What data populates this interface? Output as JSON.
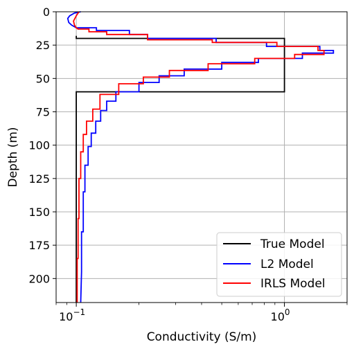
{
  "chart_data": {
    "type": "line",
    "xlabel": "Conductivity (S/m)",
    "ylabel": "Depth (m)",
    "x_scale": "log",
    "xlim": [
      0.08,
      2.0
    ],
    "ylim": [
      218,
      0
    ],
    "y_inverted": true,
    "grid": true,
    "legend": "bottom-right",
    "x_ticks": [
      {
        "value": 0.1,
        "base": "10",
        "exp": "−1"
      },
      {
        "value": 1.0,
        "base": "10",
        "exp": "0"
      }
    ],
    "y_ticks": [
      0,
      25,
      50,
      75,
      100,
      125,
      150,
      175,
      200
    ],
    "series": [
      {
        "name": "True Model",
        "color": "#000000",
        "x": [
          0.1,
          0.1,
          1.0,
          1.0,
          0.1,
          0.1
        ],
        "y": [
          18,
          20,
          20,
          60,
          60,
          218
        ]
      },
      {
        "name": "L2 Model",
        "color": "#0000ff",
        "x": [
          0.105,
          0.098,
          0.093,
          0.091,
          0.092,
          0.095,
          0.1,
          0.102,
          0.104,
          0.125,
          0.125,
          0.18,
          0.18,
          0.22,
          0.22,
          0.47,
          0.47,
          0.82,
          0.82,
          1.48,
          1.48,
          1.72,
          1.72,
          1.22,
          1.22,
          0.75,
          0.75,
          0.5,
          0.5,
          0.33,
          0.33,
          0.25,
          0.25,
          0.2,
          0.2,
          0.155,
          0.155,
          0.14,
          0.14,
          0.131,
          0.131,
          0.124,
          0.124,
          0.118,
          0.118,
          0.114,
          0.114,
          0.11,
          0.11,
          0.108,
          0.108,
          0.106,
          0.106,
          0.105
        ],
        "y": [
          0,
          1,
          3,
          5,
          8,
          10,
          12,
          12,
          12,
          12,
          14,
          14,
          17,
          17,
          20,
          20,
          23,
          23,
          26,
          26,
          29,
          29,
          31,
          31,
          35,
          35,
          38,
          38,
          43,
          43,
          48,
          48,
          53,
          53,
          60,
          60,
          67,
          67,
          74,
          74,
          82,
          82,
          91,
          91,
          101,
          101,
          115,
          115,
          135,
          135,
          165,
          165,
          195,
          218
        ]
      },
      {
        "name": "IRLS Model",
        "color": "#ff0000",
        "x": [
          0.103,
          0.1,
          0.097,
          0.098,
          0.1,
          0.102,
          0.115,
          0.115,
          0.14,
          0.14,
          0.22,
          0.22,
          0.45,
          0.45,
          0.92,
          0.92,
          1.45,
          1.45,
          1.55,
          1.55,
          1.12,
          1.12,
          0.72,
          0.72,
          0.43,
          0.43,
          0.28,
          0.28,
          0.21,
          0.21,
          0.16,
          0.16,
          0.13,
          0.13,
          0.12,
          0.12,
          0.112,
          0.112,
          0.108,
          0.108,
          0.105,
          0.105,
          0.103,
          0.103,
          0.102,
          0.102,
          0.101,
          0.101
        ],
        "y": [
          0,
          3,
          7,
          10,
          12,
          13,
          13,
          15,
          15,
          17,
          17,
          21,
          21,
          23,
          23,
          26,
          26,
          29,
          29,
          32,
          32,
          35,
          35,
          39,
          39,
          44,
          44,
          49,
          49,
          54,
          54,
          62,
          62,
          73,
          73,
          82,
          82,
          92,
          92,
          105,
          105,
          125,
          125,
          155,
          155,
          185,
          185,
          218
        ]
      }
    ]
  }
}
